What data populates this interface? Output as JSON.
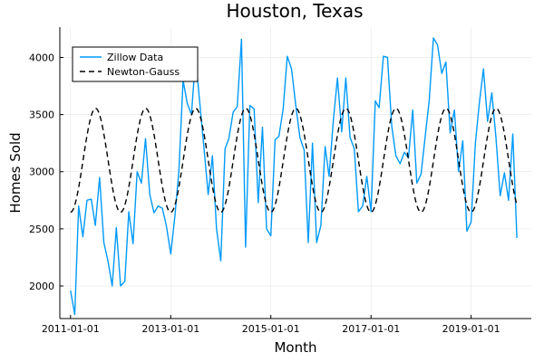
{
  "chart_data": {
    "type": "line",
    "title": "Houston, Texas",
    "xlabel": "Month",
    "ylabel": "Homes Sold",
    "x_ticks": [
      "2011-01-01",
      "2013-01-01",
      "2015-01-01",
      "2017-01-01",
      "2019-01-01"
    ],
    "y_ticks": [
      2000,
      2500,
      3000,
      3500,
      4000
    ],
    "xlim": [
      "2010-10-15",
      "2020-03-15"
    ],
    "ylim": [
      1715,
      4265
    ],
    "grid": true,
    "legend_position": "top-left",
    "colors": {
      "zillow": "#009AFA",
      "newton": "#000000"
    },
    "series": [
      {
        "name": "Zillow Data",
        "style": "solid",
        "x": [
          "2011-01-01",
          "2011-02-01",
          "2011-03-01",
          "2011-04-01",
          "2011-05-01",
          "2011-06-01",
          "2011-07-01",
          "2011-08-01",
          "2011-09-01",
          "2011-10-01",
          "2011-11-01",
          "2011-12-01",
          "2012-01-01",
          "2012-02-01",
          "2012-03-01",
          "2012-04-01",
          "2012-05-01",
          "2012-06-01",
          "2012-07-01",
          "2012-08-01",
          "2012-09-01",
          "2012-10-01",
          "2012-11-01",
          "2012-12-01",
          "2013-01-01",
          "2013-02-01",
          "2013-03-01",
          "2013-04-01",
          "2013-05-01",
          "2013-06-01",
          "2013-07-01",
          "2013-08-01",
          "2013-09-01",
          "2013-10-01",
          "2013-11-01",
          "2013-12-01",
          "2014-01-01",
          "2014-02-01",
          "2014-03-01",
          "2014-04-01",
          "2014-05-01",
          "2014-06-01",
          "2014-07-01",
          "2014-08-01",
          "2014-09-01",
          "2014-10-01",
          "2014-11-01",
          "2014-12-01",
          "2015-01-01",
          "2015-02-01",
          "2015-03-01",
          "2015-04-01",
          "2015-05-01",
          "2015-06-01",
          "2015-07-01",
          "2015-08-01",
          "2015-09-01",
          "2015-10-01",
          "2015-11-01",
          "2015-12-01",
          "2016-01-01",
          "2016-02-01",
          "2016-03-01",
          "2016-04-01",
          "2016-05-01",
          "2016-06-01",
          "2016-07-01",
          "2016-08-01",
          "2016-09-01",
          "2016-10-01",
          "2016-11-01",
          "2016-12-01",
          "2017-01-01",
          "2017-02-01",
          "2017-03-01",
          "2017-04-01",
          "2017-05-01",
          "2017-06-01",
          "2017-07-01",
          "2017-08-01",
          "2017-09-01",
          "2017-10-01",
          "2017-11-01",
          "2017-12-01",
          "2018-01-01",
          "2018-02-01",
          "2018-03-01",
          "2018-04-01",
          "2018-05-01",
          "2018-06-01",
          "2018-07-01",
          "2018-08-01",
          "2018-09-01",
          "2018-10-01",
          "2018-11-01",
          "2018-12-01",
          "2019-01-01",
          "2019-02-01",
          "2019-03-01",
          "2019-04-01",
          "2019-05-01",
          "2019-06-01",
          "2019-07-01",
          "2019-08-01",
          "2019-09-01",
          "2019-10-01",
          "2019-11-01",
          "2019-12-01"
        ],
        "y": [
          1960,
          1750,
          2700,
          2430,
          2750,
          2760,
          2530,
          2950,
          2380,
          2220,
          2000,
          2510,
          2000,
          2040,
          2650,
          2370,
          3000,
          2900,
          3290,
          2800,
          2640,
          2700,
          2680,
          2520,
          2280,
          2620,
          3000,
          3800,
          3600,
          3500,
          4000,
          3600,
          3200,
          2800,
          3140,
          2500,
          2220,
          3200,
          3290,
          3520,
          3570,
          4160,
          2340,
          3580,
          3550,
          2730,
          3390,
          2500,
          2440,
          3280,
          3310,
          3550,
          4010,
          3900,
          3590,
          3300,
          3190,
          2380,
          3250,
          2380,
          2530,
          3220,
          2960,
          3450,
          3820,
          3350,
          3820,
          3300,
          3200,
          2650,
          2700,
          2960,
          2650,
          3620,
          3560,
          4010,
          4000,
          3400,
          3140,
          3070,
          3170,
          3120,
          3540,
          2900,
          2980,
          3320,
          3620,
          4170,
          4110,
          3860,
          3960,
          3340,
          3540,
          3000,
          3270,
          2480,
          2560,
          3250,
          3590,
          3900,
          3440,
          3690,
          3300,
          2790,
          2990,
          2750,
          3330,
          2420
        ]
      },
      {
        "name": "Newton-Gauss",
        "style": "dashed",
        "mean": 3100,
        "amplitude": 455,
        "period_months": 12,
        "peak_month": 7
      }
    ]
  }
}
